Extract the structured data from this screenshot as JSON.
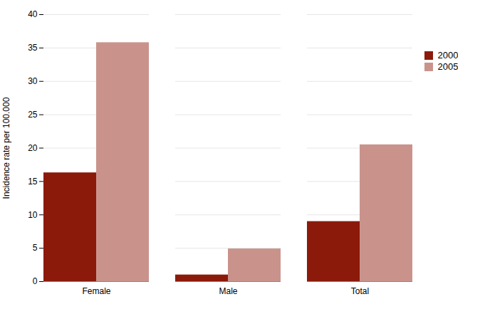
{
  "chart_data": {
    "type": "bar",
    "categories": [
      "Female",
      "Male",
      "Total"
    ],
    "series": [
      {
        "name": "2000",
        "color": "#8B1A0A",
        "values": [
          16.3,
          1.0,
          9.0
        ]
      },
      {
        "name": "2005",
        "color": "#C9938C",
        "values": [
          35.8,
          4.9,
          20.5
        ]
      }
    ],
    "ylabel": "Incidence rate per 100.000",
    "ylim": [
      0,
      40
    ],
    "yticks": [
      0,
      5,
      10,
      15,
      20,
      25,
      30,
      35,
      40
    ],
    "grid": true,
    "legend": "right"
  }
}
